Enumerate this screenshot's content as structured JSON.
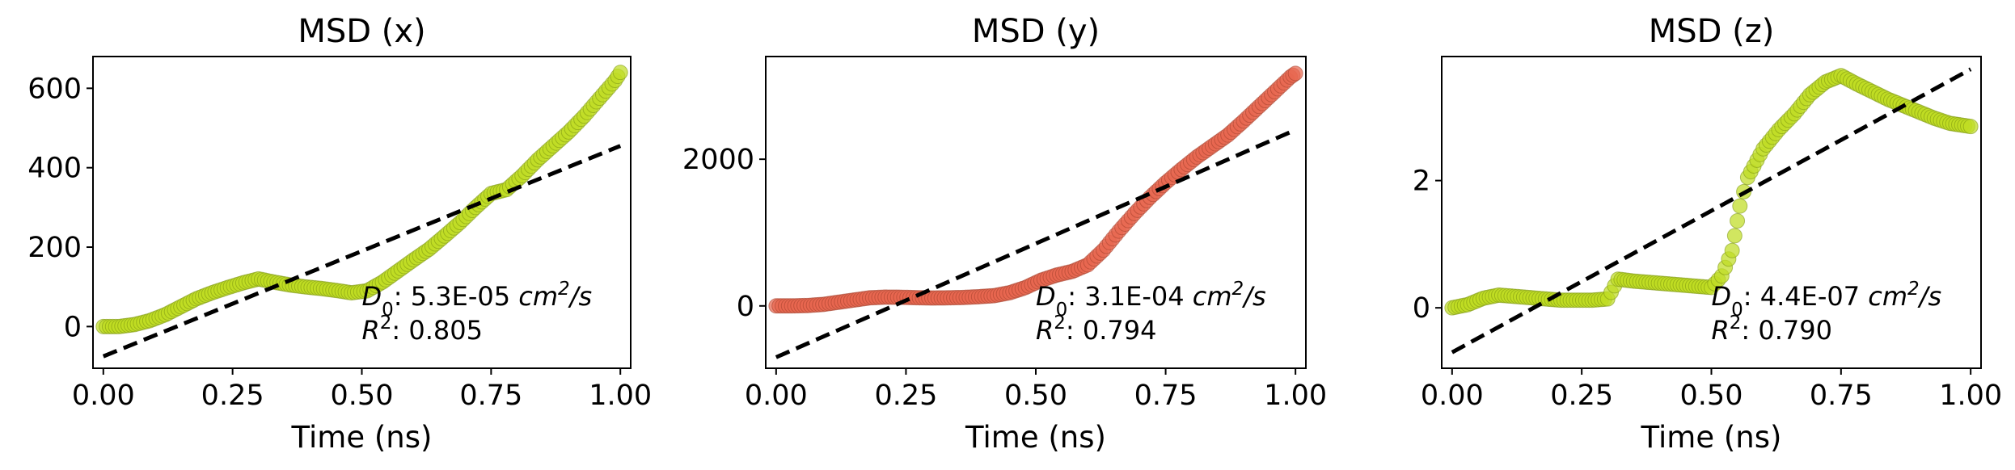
{
  "chart_data": [
    {
      "type": "scatter",
      "title": "MSD (x)",
      "xlabel": "Time (ns)",
      "ylabel": "",
      "xlim": [
        -0.02,
        1.02
      ],
      "ylim": [
        -105,
        680
      ],
      "xticks": [
        0.0,
        0.25,
        0.5,
        0.75,
        1.0
      ],
      "xtick_labels": [
        "0.00",
        "0.25",
        "0.50",
        "0.75",
        "1.00"
      ],
      "yticks": [
        0,
        200,
        400,
        600
      ],
      "ytick_labels": [
        "0",
        "200",
        "400",
        "600"
      ],
      "point_color": "#bfdd22",
      "point_edge": "#7a9410",
      "fit_line": {
        "style": "dashed",
        "color": "#000000",
        "x": [
          0.0,
          1.0
        ],
        "y": [
          -75,
          455
        ]
      },
      "annotation": {
        "d_symbol": "D",
        "d_sub": "0",
        "d_sep": ": ",
        "d_value": "5.3E-05",
        "d_unit": "cm",
        "d_unit_sup": "2",
        "d_unit_tail": "/s",
        "r_symbol": "R",
        "r_sup": "2",
        "r_sep": ": ",
        "r_value": "0.805"
      },
      "series": [
        {
          "x": [
            0.0,
            0.03,
            0.06,
            0.09,
            0.12,
            0.15,
            0.18,
            0.21,
            0.24,
            0.27,
            0.3,
            0.33,
            0.36,
            0.39,
            0.42,
            0.45,
            0.48,
            0.51,
            0.54,
            0.57,
            0.6,
            0.63,
            0.66,
            0.69,
            0.72,
            0.75,
            0.78,
            0.81,
            0.84,
            0.87,
            0.9,
            0.93,
            0.96,
            0.99,
            1.0
          ],
          "y": [
            0,
            0,
            5,
            15,
            30,
            50,
            70,
            85,
            98,
            110,
            120,
            112,
            105,
            100,
            96,
            91,
            85,
            90,
            112,
            140,
            168,
            195,
            228,
            262,
            300,
            335,
            345,
            380,
            420,
            455,
            490,
            530,
            575,
            620,
            640
          ]
        }
      ]
    },
    {
      "type": "scatter",
      "title": "MSD (y)",
      "xlabel": "Time (ns)",
      "ylabel": "",
      "xlim": [
        -0.02,
        1.02
      ],
      "ylim": [
        -850,
        3400
      ],
      "xticks": [
        0.0,
        0.25,
        0.5,
        0.75,
        1.0
      ],
      "xtick_labels": [
        "0.00",
        "0.25",
        "0.50",
        "0.75",
        "1.00"
      ],
      "yticks": [
        0,
        2000
      ],
      "ytick_labels": [
        "0",
        "2000"
      ],
      "point_color": "#e8674f",
      "point_edge": "#a3402c",
      "fit_line": {
        "style": "dashed",
        "color": "#000000",
        "x": [
          0.0,
          1.0
        ],
        "y": [
          -700,
          2400
        ]
      },
      "annotation": {
        "d_symbol": "D",
        "d_sub": "0",
        "d_sep": ": ",
        "d_value": "3.1E-04",
        "d_unit": "cm",
        "d_unit_sup": "2",
        "d_unit_tail": "/s",
        "r_symbol": "R",
        "r_sup": "2",
        "r_sep": ": ",
        "r_value": "0.794"
      },
      "series": [
        {
          "x": [
            0.0,
            0.03,
            0.06,
            0.09,
            0.12,
            0.15,
            0.18,
            0.21,
            0.24,
            0.27,
            0.3,
            0.33,
            0.36,
            0.39,
            0.42,
            0.45,
            0.48,
            0.51,
            0.54,
            0.57,
            0.6,
            0.63,
            0.66,
            0.69,
            0.72,
            0.75,
            0.78,
            0.81,
            0.84,
            0.87,
            0.9,
            0.93,
            0.96,
            0.99,
            1.0
          ],
          "y": [
            0,
            0,
            5,
            20,
            50,
            80,
            110,
            120,
            118,
            112,
            108,
            110,
            115,
            125,
            140,
            180,
            250,
            350,
            420,
            470,
            560,
            760,
            1020,
            1260,
            1480,
            1680,
            1860,
            2030,
            2180,
            2330,
            2520,
            2720,
            2920,
            3120,
            3170
          ]
        }
      ]
    },
    {
      "type": "scatter",
      "title": "MSD (z)",
      "xlabel": "Time (ns)",
      "ylabel": "",
      "xlim": [
        -0.02,
        1.02
      ],
      "ylim": [
        -0.95,
        3.95
      ],
      "xticks": [
        0.0,
        0.25,
        0.5,
        0.75,
        1.0
      ],
      "xtick_labels": [
        "0.00",
        "0.25",
        "0.50",
        "0.75",
        "1.00"
      ],
      "yticks": [
        0,
        2
      ],
      "ytick_labels": [
        "0",
        "2"
      ],
      "point_color": "#bfdd22",
      "point_edge": "#7a9410",
      "fit_line": {
        "style": "dashed",
        "color": "#000000",
        "x": [
          0.0,
          1.0
        ],
        "y": [
          -0.7,
          3.75
        ]
      },
      "annotation": {
        "d_symbol": "D",
        "d_sub": "0",
        "d_sep": ": ",
        "d_value": "4.4E-07",
        "d_unit": "cm",
        "d_unit_sup": "2",
        "d_unit_tail": "/s",
        "r_symbol": "R",
        "r_sup": "2",
        "r_sep": ": ",
        "r_value": "0.790"
      },
      "series": [
        {
          "x": [
            0.0,
            0.03,
            0.06,
            0.09,
            0.12,
            0.15,
            0.18,
            0.21,
            0.24,
            0.27,
            0.3,
            0.32,
            0.35,
            0.38,
            0.41,
            0.44,
            0.47,
            0.5,
            0.52,
            0.54,
            0.555,
            0.57,
            0.6,
            0.63,
            0.66,
            0.69,
            0.72,
            0.75,
            0.78,
            0.81,
            0.84,
            0.87,
            0.9,
            0.93,
            0.96,
            1.0
          ],
          "y": [
            0.0,
            0.05,
            0.15,
            0.2,
            0.18,
            0.16,
            0.14,
            0.12,
            0.12,
            0.12,
            0.14,
            0.45,
            0.42,
            0.4,
            0.38,
            0.36,
            0.34,
            0.32,
            0.5,
            0.9,
            1.6,
            2.05,
            2.5,
            2.8,
            3.05,
            3.35,
            3.55,
            3.65,
            3.52,
            3.4,
            3.28,
            3.18,
            3.08,
            2.98,
            2.9,
            2.85
          ]
        }
      ]
    }
  ]
}
